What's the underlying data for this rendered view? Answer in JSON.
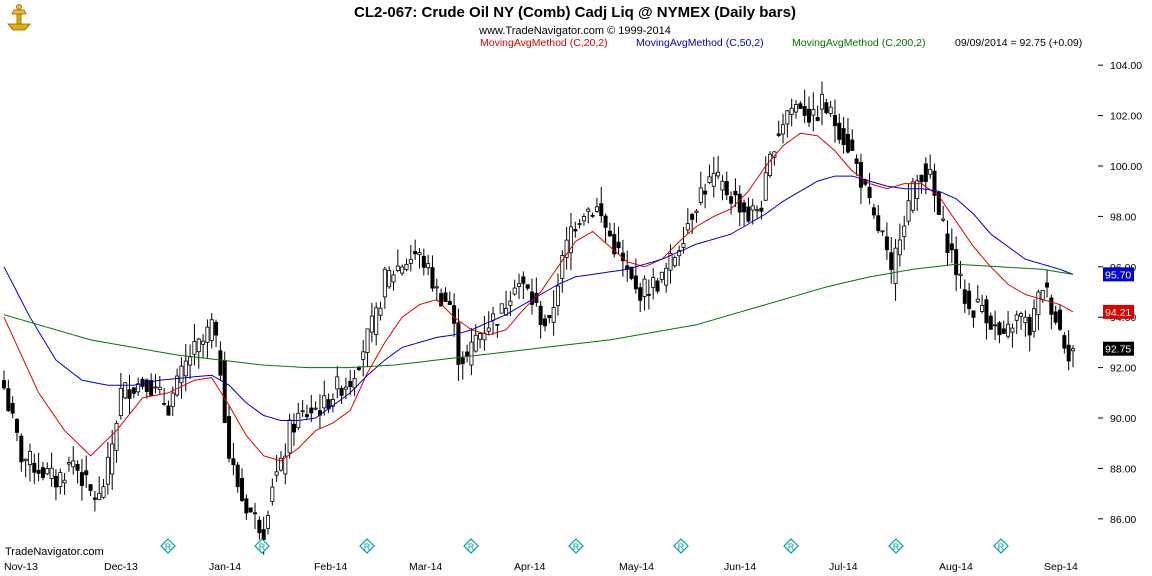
{
  "header": {
    "title": "CL2-067:  Crude Oil NY (Comb) Cadj Liq @ NYMEX  (Daily bars)",
    "subtitle": "www.TradeNavigator.com © 1999-2014",
    "legend": [
      {
        "label": "MovingAvgMethod (C,20,2)",
        "color": "#e00000"
      },
      {
        "label": "MovingAvgMethod (C,50,2)",
        "color": "#0000d0"
      },
      {
        "label": "MovingAvgMethod (C,200,2)",
        "color": "#007800"
      },
      {
        "label": "09/09/2014 = 92.75 (+0.09)",
        "color": "#000000"
      }
    ]
  },
  "footer": {
    "brand": "TradeNavigator.com",
    "marker_glyph": "R"
  },
  "colors": {
    "price_bars": "#000000",
    "ma20": "#e00000",
    "ma50": "#0000d0",
    "ma200": "#007800",
    "marker": "#00a0a0"
  },
  "chart_data": {
    "type": "ohlc",
    "y_ticks": [
      "86.00",
      "88.00",
      "90.00",
      "92.00",
      "94.00",
      "96.00",
      "98.00",
      "100.00",
      "102.00",
      "104.00"
    ],
    "ylim": [
      85.0,
      105.0
    ],
    "months": [
      "Nov-13",
      "Dec-13",
      "Jan-14",
      "Feb-14",
      "Mar-14",
      "Apr-14",
      "May-14",
      "Jun-14",
      "Jul-14",
      "Aug-14",
      "Sep-14"
    ],
    "price_tags": [
      {
        "value": 95.7,
        "label": "95.70",
        "color": "#0000d0"
      },
      {
        "value": 94.21,
        "label": "94.21",
        "color": "#e00000"
      },
      {
        "value": 92.75,
        "label": "92.75",
        "color": "#000000"
      }
    ],
    "series": [
      {
        "name": "Close",
        "anchors": [
          [
            0,
            91.2
          ],
          [
            4,
            88.5
          ],
          [
            8,
            88.0
          ],
          [
            12,
            87.5
          ],
          [
            16,
            88.3
          ],
          [
            20,
            87.0
          ],
          [
            22,
            86.8
          ],
          [
            24,
            88.0
          ],
          [
            27,
            91.0
          ],
          [
            30,
            91.3
          ],
          [
            33,
            91.5
          ],
          [
            35,
            91.0
          ],
          [
            38,
            90.5
          ],
          [
            40,
            91.3
          ],
          [
            43,
            92.5
          ],
          [
            46,
            93.0
          ],
          [
            48,
            93.7
          ],
          [
            50,
            92.0
          ],
          [
            52,
            88.5
          ],
          [
            55,
            86.8
          ],
          [
            58,
            86.0
          ],
          [
            60,
            85.6
          ],
          [
            62,
            87.5
          ],
          [
            64,
            88.0
          ],
          [
            66,
            89.5
          ],
          [
            68,
            90.0
          ],
          [
            71,
            90.3
          ],
          [
            74,
            90.5
          ],
          [
            77,
            91.2
          ],
          [
            80,
            91.5
          ],
          [
            83,
            92.8
          ],
          [
            86,
            94.0
          ],
          [
            88,
            95.5
          ],
          [
            91,
            96.0
          ],
          [
            95,
            96.5
          ],
          [
            97,
            96.2
          ],
          [
            100,
            95.0
          ],
          [
            103,
            94.5
          ],
          [
            105,
            92.5
          ],
          [
            107,
            92.3
          ],
          [
            109,
            93.2
          ],
          [
            112,
            93.8
          ],
          [
            115,
            94.2
          ],
          [
            118,
            95.5
          ],
          [
            121,
            95.0
          ],
          [
            124,
            94.0
          ],
          [
            126,
            93.6
          ],
          [
            128,
            95.5
          ],
          [
            131,
            97.5
          ],
          [
            134,
            98.3
          ],
          [
            137,
            98.3
          ],
          [
            140,
            97.2
          ],
          [
            142,
            96.5
          ],
          [
            144,
            95.7
          ],
          [
            146,
            95.0
          ],
          [
            149,
            95.2
          ],
          [
            152,
            95.5
          ],
          [
            155,
            96.5
          ],
          [
            158,
            97.8
          ],
          [
            161,
            99.0
          ],
          [
            164,
            99.5
          ],
          [
            167,
            99.0
          ],
          [
            170,
            98.5
          ],
          [
            172,
            98.0
          ],
          [
            175,
            98.5
          ],
          [
            178,
            101.0
          ],
          [
            181,
            102.2
          ],
          [
            184,
            102.5
          ],
          [
            187,
            101.8
          ],
          [
            189,
            102.5
          ],
          [
            191,
            102.0
          ],
          [
            193,
            101.5
          ],
          [
            196,
            100.5
          ],
          [
            198,
            99.5
          ],
          [
            201,
            97.8
          ],
          [
            203,
            97.2
          ],
          [
            205,
            95.5
          ],
          [
            207,
            97.5
          ],
          [
            210,
            99.0
          ],
          [
            212,
            99.8
          ],
          [
            214,
            99.5
          ],
          [
            216,
            98.0
          ],
          [
            219,
            96.5
          ],
          [
            221,
            95.3
          ],
          [
            223,
            94.3
          ],
          [
            226,
            94.5
          ],
          [
            229,
            93.5
          ],
          [
            231,
            93.0
          ],
          [
            233,
            93.8
          ],
          [
            235,
            94.0
          ],
          [
            237,
            93.5
          ],
          [
            240,
            95.3
          ],
          [
            242,
            94.5
          ],
          [
            244,
            93.5
          ],
          [
            246,
            92.66
          ],
          [
            247,
            92.75
          ]
        ]
      },
      {
        "name": "MA20",
        "anchors": [
          [
            0,
            94.0
          ],
          [
            8,
            91.0
          ],
          [
            14,
            89.5
          ],
          [
            20,
            88.5
          ],
          [
            26,
            89.5
          ],
          [
            32,
            90.8
          ],
          [
            38,
            91.0
          ],
          [
            44,
            91.5
          ],
          [
            48,
            91.6
          ],
          [
            52,
            90.5
          ],
          [
            56,
            89.3
          ],
          [
            60,
            88.5
          ],
          [
            64,
            88.3
          ],
          [
            68,
            88.8
          ],
          [
            72,
            89.5
          ],
          [
            76,
            89.8
          ],
          [
            80,
            90.3
          ],
          [
            84,
            91.8
          ],
          [
            88,
            93.0
          ],
          [
            92,
            94.0
          ],
          [
            96,
            94.5
          ],
          [
            100,
            94.7
          ],
          [
            104,
            94.0
          ],
          [
            108,
            93.5
          ],
          [
            112,
            93.3
          ],
          [
            116,
            93.5
          ],
          [
            120,
            94.3
          ],
          [
            124,
            95.0
          ],
          [
            128,
            96.0
          ],
          [
            132,
            97.0
          ],
          [
            136,
            97.4
          ],
          [
            140,
            96.8
          ],
          [
            144,
            96.2
          ],
          [
            148,
            96.0
          ],
          [
            152,
            96.3
          ],
          [
            156,
            97.0
          ],
          [
            160,
            97.6
          ],
          [
            164,
            98.0
          ],
          [
            168,
            98.3
          ],
          [
            172,
            99.0
          ],
          [
            176,
            100.0
          ],
          [
            180,
            100.8
          ],
          [
            184,
            101.3
          ],
          [
            188,
            101.2
          ],
          [
            192,
            100.6
          ],
          [
            196,
            99.8
          ],
          [
            200,
            99.3
          ],
          [
            204,
            99.1
          ],
          [
            208,
            99.3
          ],
          [
            212,
            99.3
          ],
          [
            216,
            98.8
          ],
          [
            220,
            97.8
          ],
          [
            224,
            96.8
          ],
          [
            228,
            96.0
          ],
          [
            232,
            95.3
          ],
          [
            236,
            94.9
          ],
          [
            240,
            94.7
          ],
          [
            244,
            94.5
          ],
          [
            247,
            94.21
          ]
        ]
      },
      {
        "name": "MA50",
        "anchors": [
          [
            0,
            96.0
          ],
          [
            6,
            94.0
          ],
          [
            12,
            92.3
          ],
          [
            18,
            91.5
          ],
          [
            24,
            91.3
          ],
          [
            30,
            91.3
          ],
          [
            36,
            91.5
          ],
          [
            42,
            91.6
          ],
          [
            48,
            91.7
          ],
          [
            52,
            91.3
          ],
          [
            56,
            90.6
          ],
          [
            60,
            90.1
          ],
          [
            64,
            89.9
          ],
          [
            68,
            89.9
          ],
          [
            72,
            90.0
          ],
          [
            76,
            90.5
          ],
          [
            80,
            91.0
          ],
          [
            84,
            91.7
          ],
          [
            88,
            92.3
          ],
          [
            92,
            92.8
          ],
          [
            96,
            93.0
          ],
          [
            100,
            93.2
          ],
          [
            104,
            93.3
          ],
          [
            108,
            93.5
          ],
          [
            112,
            93.8
          ],
          [
            116,
            94.1
          ],
          [
            120,
            94.5
          ],
          [
            124,
            94.9
          ],
          [
            128,
            95.3
          ],
          [
            132,
            95.6
          ],
          [
            136,
            95.7
          ],
          [
            140,
            95.8
          ],
          [
            144,
            95.9
          ],
          [
            148,
            96.1
          ],
          [
            152,
            96.3
          ],
          [
            156,
            96.6
          ],
          [
            160,
            96.9
          ],
          [
            164,
            97.1
          ],
          [
            168,
            97.3
          ],
          [
            172,
            97.7
          ],
          [
            176,
            98.1
          ],
          [
            180,
            98.6
          ],
          [
            184,
            99.0
          ],
          [
            188,
            99.4
          ],
          [
            192,
            99.6
          ],
          [
            196,
            99.6
          ],
          [
            200,
            99.4
          ],
          [
            204,
            99.2
          ],
          [
            208,
            99.1
          ],
          [
            212,
            99.1
          ],
          [
            216,
            99.0
          ],
          [
            220,
            98.7
          ],
          [
            224,
            98.1
          ],
          [
            228,
            97.3
          ],
          [
            232,
            96.8
          ],
          [
            236,
            96.3
          ],
          [
            240,
            96.1
          ],
          [
            244,
            95.9
          ],
          [
            247,
            95.7
          ]
        ]
      },
      {
        "name": "MA200",
        "anchors": [
          [
            0,
            94.1
          ],
          [
            10,
            93.6
          ],
          [
            20,
            93.1
          ],
          [
            30,
            92.8
          ],
          [
            40,
            92.5
          ],
          [
            50,
            92.3
          ],
          [
            60,
            92.1
          ],
          [
            70,
            92.0
          ],
          [
            80,
            92.0
          ],
          [
            90,
            92.1
          ],
          [
            100,
            92.3
          ],
          [
            110,
            92.5
          ],
          [
            120,
            92.7
          ],
          [
            130,
            92.9
          ],
          [
            140,
            93.1
          ],
          [
            150,
            93.4
          ],
          [
            160,
            93.7
          ],
          [
            170,
            94.2
          ],
          [
            180,
            94.7
          ],
          [
            190,
            95.2
          ],
          [
            200,
            95.6
          ],
          [
            210,
            95.9
          ],
          [
            220,
            96.1
          ],
          [
            230,
            96.0
          ],
          [
            240,
            95.9
          ],
          [
            247,
            95.7
          ]
        ]
      }
    ]
  }
}
